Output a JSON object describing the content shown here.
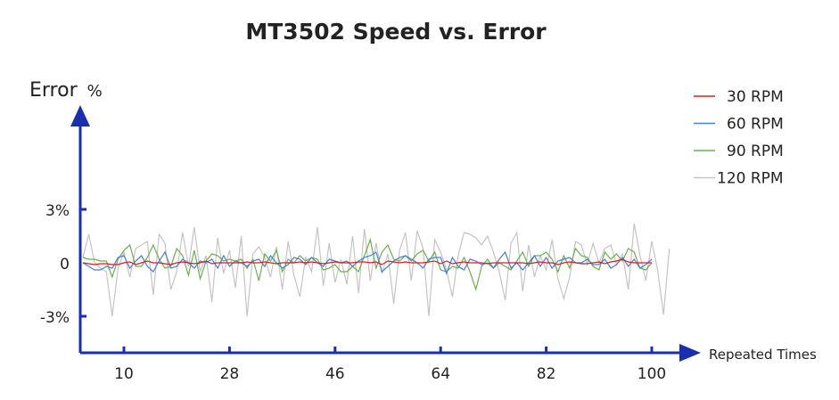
{
  "chart_data": {
    "type": "line",
    "title": "MT3502 Speed vs. Error",
    "ylabel": "Error",
    "ylabel_unit": "%",
    "xlabel": "Repeated Times",
    "xticks": [
      10,
      28,
      46,
      64,
      82,
      100
    ],
    "xtick_labels": [
      "10",
      "28",
      "46",
      "64",
      "82",
      "100"
    ],
    "yticks": [
      3,
      0,
      -3
    ],
    "ytick_labels": [
      "3%",
      "0",
      "-3%"
    ],
    "xlim": [
      2.5,
      108
    ],
    "ylim": [
      -5,
      8.7
    ],
    "x_start": 3,
    "grid": false,
    "legend_position": "top-right",
    "series": [
      {
        "name": "30 RPM",
        "color": "#d62020",
        "values": [
          0,
          -0.05,
          -0.1,
          -0.05,
          -0.05,
          -0.1,
          -0.1,
          0,
          0.05,
          -0.1,
          0,
          0.1,
          0,
          0,
          -0.05,
          -0.1,
          0,
          0.05,
          0,
          -0.05,
          0,
          0.1,
          -0.05,
          0,
          0,
          0,
          0,
          0,
          0.05,
          0,
          0,
          0.05,
          0,
          -0.05,
          0,
          0,
          0,
          0.05,
          0,
          0.05,
          0,
          -0.05,
          0,
          0.05,
          0,
          0,
          0,
          0.05,
          0.05,
          0,
          0.05,
          -0.1,
          0.1,
          0.05,
          0,
          0.05,
          0,
          0,
          0,
          0.05,
          0.1,
          -0.05,
          0.1,
          -0.05,
          0,
          0.05,
          0,
          0,
          0,
          -0.05,
          0,
          0,
          0,
          0,
          0,
          0,
          -0.05,
          0,
          0.05,
          0,
          0,
          -0.1,
          0,
          0.05,
          0,
          -0.05,
          -0.05,
          0,
          0.05,
          -0.05,
          0.05,
          0.1,
          0.2,
          0.05,
          0,
          0,
          0,
          0
        ]
      },
      {
        "name": "60 RPM",
        "color": "#4a7fd8",
        "values": [
          0,
          -0.2,
          -0.4,
          -0.4,
          -0.2,
          -0.3,
          0.3,
          0.4,
          -0.3,
          0.1,
          0.4,
          -0.2,
          -0.5,
          0.1,
          0.6,
          -0.3,
          -0.2,
          0.2,
          0,
          -0.3,
          0.1,
          0,
          0.2,
          -0.3,
          0.4,
          -0.2,
          0.1,
          0,
          -0.2,
          0.1,
          0.2,
          -0.2,
          0.4,
          0,
          -0.3,
          -0.1,
          0.3,
          0.2,
          -0.1,
          0.3,
          0,
          -0.2,
          0.2,
          0.1,
          0,
          0.1,
          -0.2,
          0.1,
          0.3,
          0.4,
          0.6,
          -0.5,
          -0.2,
          0.1,
          0.3,
          0.4,
          0.2,
          0,
          -0.3,
          0.2,
          0.3,
          0.3,
          -0.6,
          0.3,
          -0.2,
          -0.4,
          0.2,
          0.1,
          -0.1,
          0,
          -0.3,
          0.2,
          0.6,
          -0.3,
          0,
          -0.4,
          0,
          0.4,
          -0.2,
          0.3,
          -0.3,
          0.1,
          0.2,
          0.3,
          0,
          0,
          0.2,
          -0.1,
          -0.1,
          0.2,
          -0.3,
          -0.1,
          0.3,
          -0.2,
          0.2,
          -0.3,
          -0.1,
          0.2
        ]
      },
      {
        "name": "90 RPM",
        "color": "#6ab04c",
        "values": [
          0.3,
          0.2,
          0.2,
          0.1,
          0.1,
          -0.8,
          0.2,
          0.7,
          1.0,
          -0.2,
          -0.2,
          0.3,
          1.0,
          0.2,
          -0.3,
          -0.2,
          0.8,
          0.4,
          -0.7,
          0.7,
          -0.9,
          0.1,
          0.5,
          0.4,
          0.1,
          0.2,
          0.1,
          0.2,
          -0.3,
          0.2,
          -1.0,
          0.5,
          0.1,
          0.7,
          -0.5,
          0.2,
          0,
          0.4,
          0.1,
          0.3,
          0.2,
          -0.4,
          -0.3,
          -0.1,
          -0.5,
          -0.5,
          -0.2,
          -0.5,
          0.4,
          1.3,
          -0.3,
          0.6,
          1.0,
          0.2,
          0.1,
          0.4,
          0.1,
          0.5,
          0.7,
          0.1,
          0.6,
          -0.4,
          -0.5,
          -0.2,
          -0.3,
          0.3,
          -0.5,
          -1.5,
          -0.2,
          0.2,
          -0.3,
          0,
          -0.2,
          -0.4,
          0.1,
          0.6,
          -0.2,
          0.4,
          0.4,
          0.6,
          0.2,
          -0.5,
          0.4,
          -0.3,
          0.8,
          0.4,
          0.3,
          -0.2,
          -0.4,
          0.6,
          0.2,
          0.5,
          0.1,
          0.8,
          0.6,
          -0.3,
          -0.4,
          0
        ]
      },
      {
        "name": "120 RPM",
        "color": "#c4c4c4",
        "values": [
          0.3,
          1.6,
          0,
          -0.3,
          -0.5,
          -3.0,
          -0.3,
          0.6,
          -0.8,
          0.8,
          1.0,
          1.2,
          -1.8,
          1.6,
          1.1,
          -1.5,
          -0.5,
          1.7,
          -0.2,
          2.0,
          -0.5,
          0.4,
          -2.2,
          1.4,
          -0.6,
          0.7,
          -1.4,
          1.5,
          -3.0,
          0.5,
          0.9,
          0.3,
          -0.8,
          0.9,
          -1.5,
          1.2,
          -0.7,
          -1.9,
          0.3,
          -0.5,
          2.0,
          -1.3,
          1.1,
          -1.1,
          0.2,
          -1.2,
          1.5,
          -1.7,
          1.9,
          -1.0,
          1.1,
          -0.6,
          0.5,
          -2.3,
          0.7,
          1.7,
          -1.0,
          1.8,
          0.8,
          -3.0,
          1.3,
          0.6,
          -0.4,
          -1.9,
          0.4,
          1.7,
          1.6,
          1.4,
          1.0,
          1.5,
          0.6,
          -0.5,
          -2.1,
          1.1,
          1.7,
          -1.6,
          1.0,
          -0.8,
          0.4,
          -0.4,
          1.3,
          -0.9,
          -2.0,
          -0.8,
          1.2,
          1.0,
          -0.1,
          1.1,
          0,
          0.8,
          1.0,
          -0.1,
          0.5,
          -1.5,
          2.2,
          0.4,
          -1.0,
          1.2,
          -0.4,
          -2.9,
          0.8
        ]
      }
    ]
  }
}
